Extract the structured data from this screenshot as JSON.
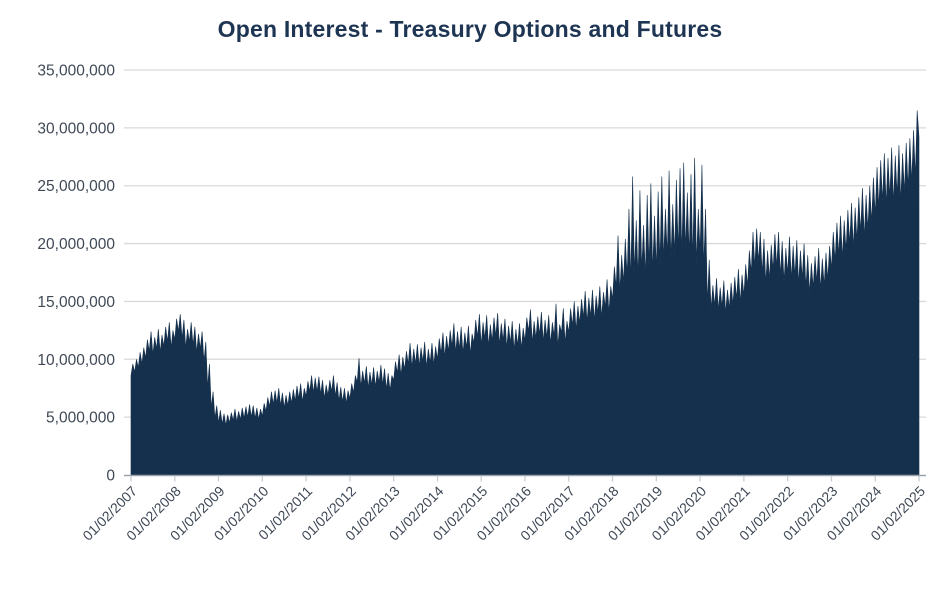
{
  "chart_data": {
    "type": "area",
    "title": "Open Interest - Treasury Options and Futures",
    "series_name": "Open Interest",
    "x_start_year": 2007,
    "x_end_year": 2025,
    "points_per_year": 24,
    "sampling_note": "Semi-monthly estimates read from the plot (alternating month-start low and mid-month spike high of the daily series). Multiply by value_scale for contracts.",
    "value_scale": 1000000,
    "values": [
      8.6,
      9.6,
      8.9,
      10.0,
      9.3,
      10.6,
      9.6,
      11.0,
      10.1,
      11.7,
      10.7,
      12.4,
      10.4,
      11.9,
      10.9,
      12.6,
      10.6,
      12.1,
      11.1,
      12.8,
      11.5,
      13.2,
      11.0,
      12.5,
      11.7,
      13.5,
      12.4,
      13.9,
      11.8,
      13.4,
      11.0,
      12.6,
      11.5,
      13.2,
      11.2,
      12.8,
      10.6,
      12.2,
      10.9,
      12.4,
      9.8,
      11.5,
      7.6,
      9.6,
      5.8,
      7.2,
      4.9,
      6.0,
      4.5,
      5.6,
      4.4,
      5.3,
      4.3,
      5.2,
      4.5,
      5.4,
      4.7,
      5.7,
      4.6,
      5.5,
      4.8,
      5.8,
      4.9,
      5.9,
      5.0,
      6.1,
      5.0,
      6.0,
      4.9,
      5.8,
      4.8,
      5.7,
      5.1,
      6.2,
      5.5,
      6.7,
      5.9,
      7.2,
      6.1,
      7.3,
      6.2,
      7.5,
      6.0,
      7.1,
      5.8,
      6.9,
      6.0,
      7.2,
      6.2,
      7.4,
      6.4,
      7.7,
      6.6,
      7.9,
      6.3,
      7.5,
      6.8,
      8.1,
      7.2,
      8.6,
      7.1,
      8.4,
      7.2,
      8.5,
      7.0,
      8.2,
      6.6,
      7.8,
      6.9,
      8.2,
      7.2,
      8.6,
      6.8,
      8.0,
      6.4,
      7.6,
      6.3,
      7.5,
      6.2,
      7.3,
      6.6,
      7.9,
      7.1,
      8.6,
      8.0,
      10.1,
      7.6,
      9.0,
      7.9,
      9.4,
      7.5,
      8.9,
      7.8,
      9.3,
      7.6,
      9.0,
      8.0,
      9.5,
      7.8,
      9.2,
      7.4,
      8.8,
      7.3,
      8.6,
      8.2,
      9.8,
      8.8,
      10.4,
      8.6,
      10.2,
      9.1,
      10.7,
      9.6,
      11.4,
      9.3,
      10.9,
      9.6,
      11.3,
      9.4,
      11.0,
      9.8,
      11.5,
      9.3,
      10.9,
      9.7,
      11.4,
      9.5,
      11.1,
      10.0,
      11.8,
      10.5,
      12.3,
      10.2,
      12.0,
      10.7,
      12.5,
      11.1,
      13.1,
      10.6,
      12.4,
      10.9,
      12.8,
      10.5,
      12.3,
      11.0,
      12.9,
      10.4,
      12.2,
      11.4,
      13.4,
      11.9,
      13.9,
      11.2,
      13.2,
      11.8,
      13.8,
      11.1,
      13.0,
      11.6,
      13.6,
      12.0,
      14.0,
      11.2,
      13.1,
      11.6,
      13.5,
      11.0,
      12.9,
      11.4,
      13.3,
      10.8,
      12.6,
      11.2,
      13.1,
      10.9,
      12.7,
      11.6,
      13.6,
      12.4,
      14.3,
      11.4,
      13.3,
      11.8,
      13.7,
      12.1,
      14.1,
      11.5,
      13.4,
      11.9,
      13.8,
      11.3,
      13.2,
      12.0,
      14.8,
      11.1,
      13.0,
      12.3,
      14.4,
      11.4,
      13.3,
      12.3,
      14.4,
      12.9,
      15.0,
      12.5,
      14.6,
      13.1,
      15.2,
      13.6,
      15.9,
      13.2,
      15.3,
      13.7,
      16.0,
      13.3,
      15.5,
      14.0,
      16.3,
      13.6,
      15.8,
      14.5,
      16.9,
      14.0,
      16.3,
      15.2,
      18.0,
      16.2,
      20.7,
      15.8,
      19.0,
      16.6,
      20.4,
      17.2,
      23.0,
      16.8,
      25.8,
      17.4,
      22.0,
      17.0,
      24.6,
      17.8,
      21.6,
      17.2,
      24.2,
      18.0,
      25.2,
      17.6,
      22.4,
      17.8,
      24.5,
      18.2,
      25.8,
      18.6,
      23.0,
      19.0,
      26.3,
      18.6,
      23.4,
      19.0,
      25.5,
      19.4,
      26.5,
      19.0,
      27.0,
      19.4,
      24.4,
      19.0,
      26.0,
      18.6,
      27.4,
      18.2,
      23.0,
      19.2,
      26.8,
      18.0,
      23.0,
      14.8,
      18.6,
      14.3,
      16.4,
      14.6,
      17.0,
      14.2,
      16.2,
      14.5,
      16.8,
      14.0,
      16.0,
      14.4,
      16.6,
      14.7,
      17.1,
      15.2,
      17.8,
      14.9,
      17.3,
      15.5,
      18.2,
      16.3,
      19.4,
      17.5,
      21.0,
      18.0,
      21.3,
      18.4,
      21.0,
      17.4,
      20.4,
      16.6,
      19.4,
      16.9,
      19.9,
      17.7,
      20.8,
      18.0,
      21.0,
      17.2,
      20.2,
      16.7,
      19.6,
      17.4,
      20.6,
      16.9,
      19.8,
      17.2,
      20.3,
      16.5,
      19.4,
      17.0,
      20.0,
      16.2,
      19.0,
      15.7,
      18.3,
      16.2,
      18.9,
      16.7,
      19.6,
      16.0,
      18.7,
      16.4,
      19.2,
      16.9,
      19.8,
      17.8,
      21.0,
      18.5,
      21.8,
      19.0,
      22.4,
      18.7,
      22.0,
      19.4,
      22.9,
      20.0,
      23.5,
      19.6,
      23.1,
      20.3,
      24.0,
      21.0,
      24.8,
      20.5,
      24.2,
      21.2,
      25.0,
      21.8,
      25.7,
      22.5,
      26.6,
      23.1,
      27.2,
      23.6,
      27.8,
      23.3,
      27.4,
      24.0,
      28.3,
      23.4,
      27.6,
      24.2,
      28.5,
      23.6,
      27.8,
      24.4,
      28.7,
      24.8,
      29.1,
      25.3,
      29.8,
      25.8,
      31.5,
      29.2
    ],
    "xtick_labels": [
      "01/02/2007",
      "01/02/2008",
      "01/02/2009",
      "01/02/2010",
      "01/02/2011",
      "01/02/2012",
      "01/02/2013",
      "01/02/2014",
      "01/02/2015",
      "01/02/2016",
      "01/02/2017",
      "01/02/2018",
      "01/02/2019",
      "01/02/2020",
      "01/02/2021",
      "01/02/2022",
      "01/02/2023",
      "01/02/2024",
      "01/02/2025"
    ],
    "ytick_values": [
      0,
      5000000,
      10000000,
      15000000,
      20000000,
      25000000,
      30000000,
      35000000
    ],
    "ytick_labels": [
      "0",
      "5,000,000",
      "10,000,000",
      "15,000,000",
      "20,000,000",
      "25,000,000",
      "30,000,000",
      "35,000,000"
    ],
    "ylim": [
      0,
      35000000
    ],
    "xlabel": "",
    "ylabel": "",
    "grid": "horizontal-only",
    "legend": "none",
    "fill_color": "#15304d",
    "grid_color": "#d9d9d9",
    "axis_line_color": "#9aa3ad",
    "tick_mark_color": "#c8cdd3",
    "label_color": "#3f4956",
    "title_color": "#1d3553"
  }
}
